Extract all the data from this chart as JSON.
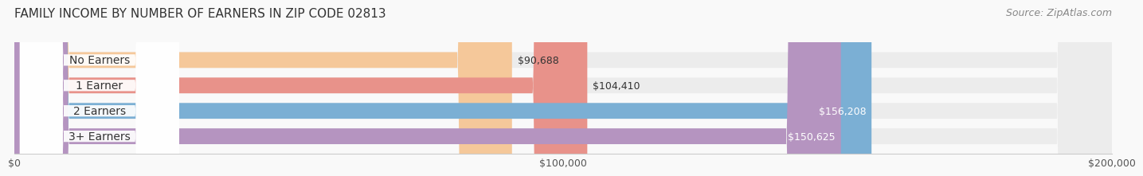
{
  "title": "FAMILY INCOME BY NUMBER OF EARNERS IN ZIP CODE 02813",
  "source": "Source: ZipAtlas.com",
  "categories": [
    "No Earners",
    "1 Earner",
    "2 Earners",
    "3+ Earners"
  ],
  "values": [
    90688,
    104410,
    156208,
    150625
  ],
  "value_labels": [
    "$90,688",
    "$104,410",
    "$156,208",
    "$150,625"
  ],
  "bar_colors": [
    "#f5c89a",
    "#e8928a",
    "#7bafd4",
    "#b594c0"
  ],
  "bar_bg_color": "#ececec",
  "xmax": 200000,
  "xtick_labels": [
    "$0",
    "$100,000",
    "$200,000"
  ],
  "title_fontsize": 11,
  "source_fontsize": 9,
  "label_fontsize": 10,
  "value_fontsize": 9,
  "background_color": "#f9f9f9"
}
